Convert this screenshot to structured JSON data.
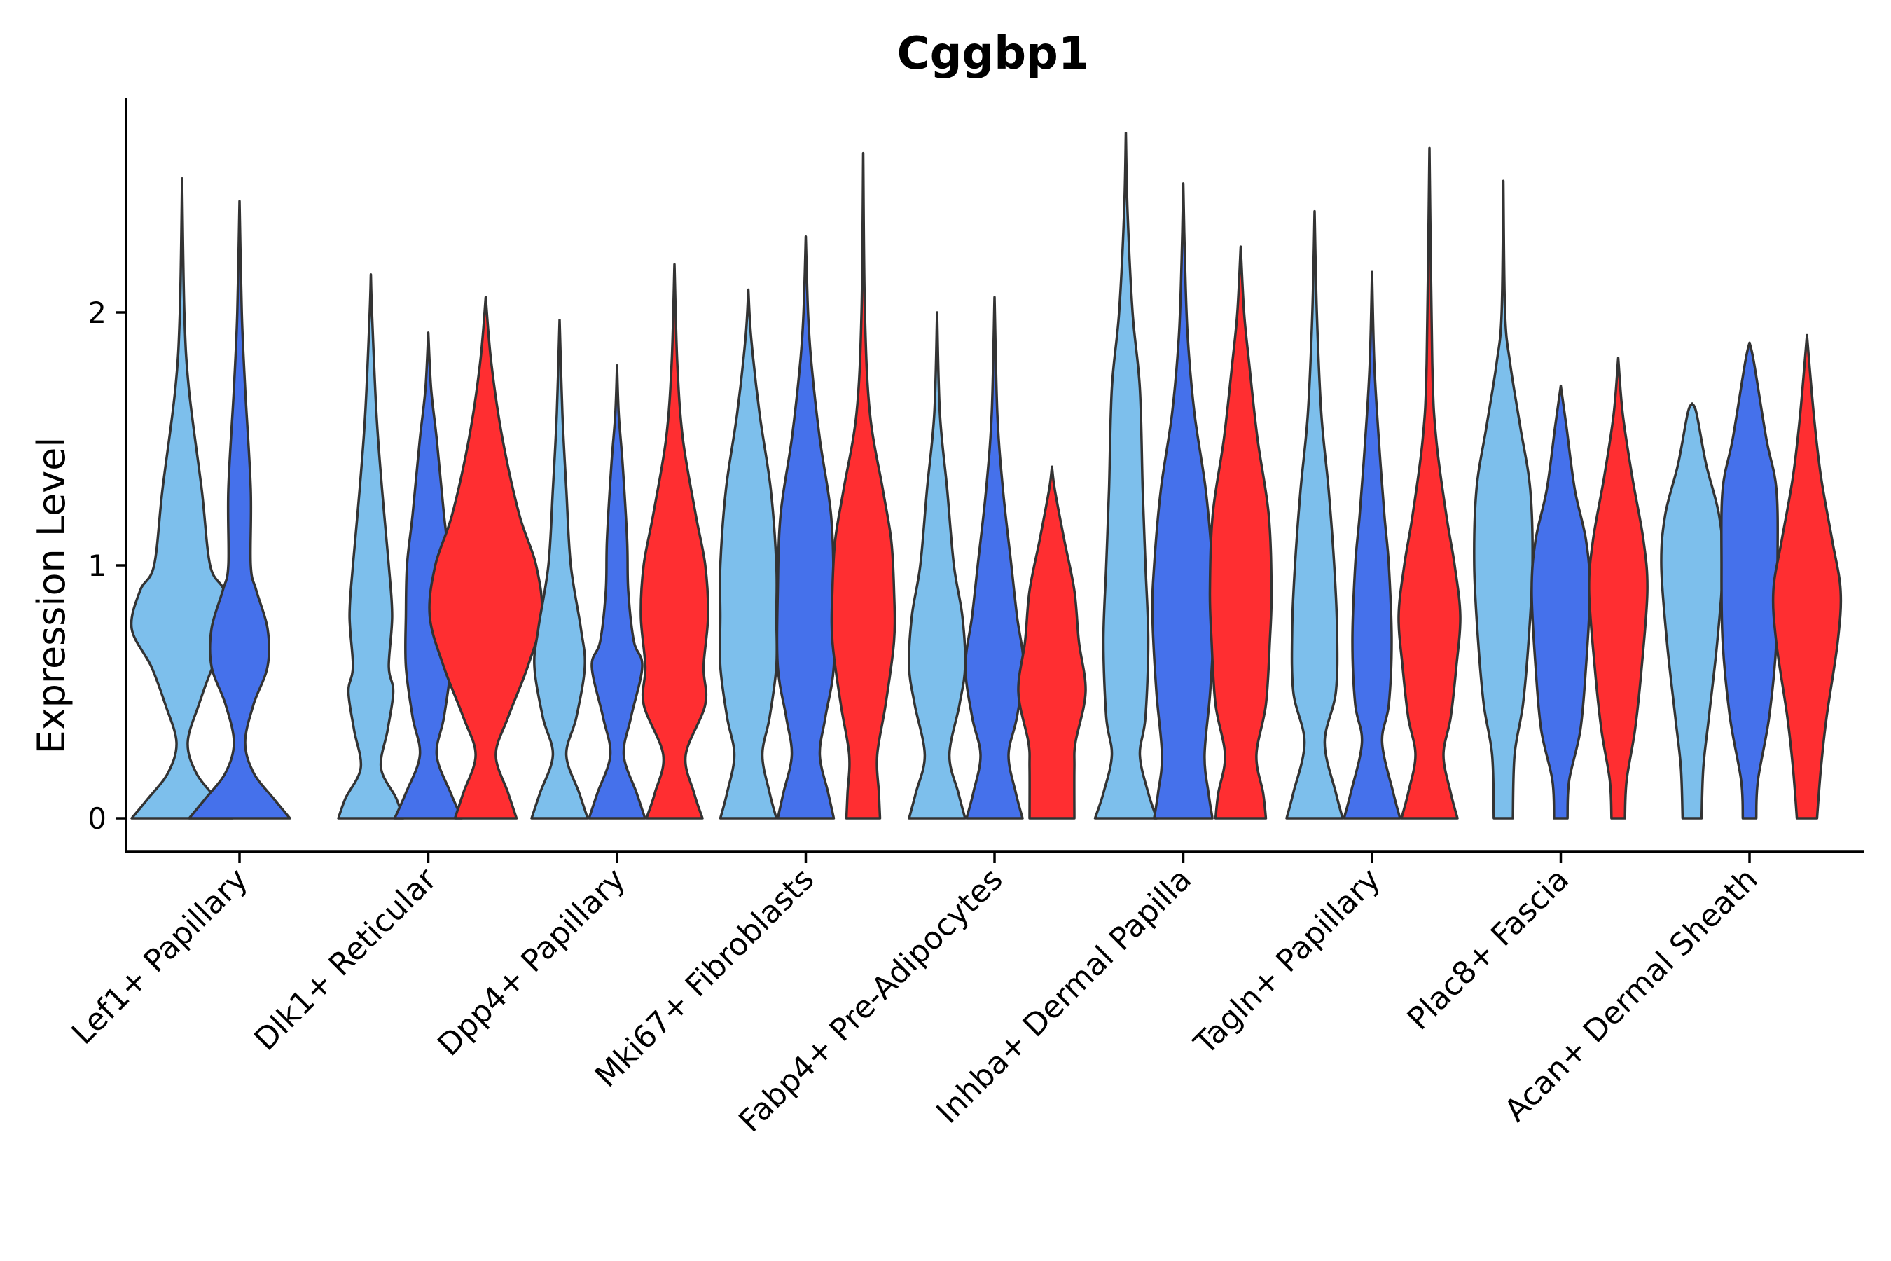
{
  "chart_data": {
    "type": "violin",
    "title": "Cggbp1",
    "xlabel": "",
    "ylabel": "Expression Level",
    "ylim": [
      -0.14,
      2.85
    ],
    "yticks": [
      0,
      1,
      2
    ],
    "categories": [
      "Lef1+ Papillary",
      "Dlk1+ Reticular",
      "Dpp4+ Papillary",
      "Mki67+ Fibroblasts",
      "Fabp4+ Pre-Adipocytes",
      "Inhba+ Dermal Papilla",
      "Tagln+ Papillary",
      "Plac8+ Fascia",
      "Acan+ Dermal Sheath"
    ],
    "series_colors": [
      "#7DBFEC",
      "#4571EB",
      "#FF2E31"
    ],
    "violins": [
      {
        "category": 0,
        "group": 0,
        "max": 2.53,
        "profile": [
          [
            0,
            0.9
          ],
          [
            0.08,
            0.6
          ],
          [
            0.18,
            0.25
          ],
          [
            0.3,
            0.1
          ],
          [
            0.45,
            0.3
          ],
          [
            0.6,
            0.55
          ],
          [
            0.75,
            0.9
          ],
          [
            0.9,
            0.75
          ],
          [
            1.0,
            0.5
          ],
          [
            1.3,
            0.35
          ],
          [
            1.7,
            0.12
          ],
          [
            2.0,
            0.04
          ],
          [
            2.53,
            0
          ]
        ]
      },
      {
        "category": 0,
        "group": 1,
        "max": 2.44,
        "profile": [
          [
            0,
            0.9
          ],
          [
            0.08,
            0.6
          ],
          [
            0.18,
            0.25
          ],
          [
            0.3,
            0.1
          ],
          [
            0.45,
            0.25
          ],
          [
            0.6,
            0.5
          ],
          [
            0.75,
            0.5
          ],
          [
            0.9,
            0.3
          ],
          [
            1.0,
            0.2
          ],
          [
            1.3,
            0.2
          ],
          [
            1.7,
            0.1
          ],
          [
            2.0,
            0.04
          ],
          [
            2.44,
            0
          ]
        ]
      },
      {
        "category": 1,
        "group": 0,
        "max": 2.15,
        "profile": [
          [
            0,
            0.58
          ],
          [
            0.08,
            0.45
          ],
          [
            0.2,
            0.18
          ],
          [
            0.35,
            0.3
          ],
          [
            0.5,
            0.4
          ],
          [
            0.6,
            0.32
          ],
          [
            0.8,
            0.38
          ],
          [
            1.0,
            0.32
          ],
          [
            1.3,
            0.2
          ],
          [
            1.6,
            0.1
          ],
          [
            2.0,
            0.02
          ],
          [
            2.15,
            0
          ]
        ]
      },
      {
        "category": 1,
        "group": 1,
        "max": 1.92,
        "profile": [
          [
            0,
            0.6
          ],
          [
            0.1,
            0.4
          ],
          [
            0.25,
            0.15
          ],
          [
            0.4,
            0.28
          ],
          [
            0.6,
            0.4
          ],
          [
            0.8,
            0.4
          ],
          [
            1.0,
            0.38
          ],
          [
            1.2,
            0.28
          ],
          [
            1.5,
            0.15
          ],
          [
            1.7,
            0.05
          ],
          [
            1.92,
            0
          ]
        ]
      },
      {
        "category": 1,
        "group": 2,
        "max": 2.06,
        "profile": [
          [
            0,
            0.55
          ],
          [
            0.1,
            0.4
          ],
          [
            0.25,
            0.18
          ],
          [
            0.4,
            0.4
          ],
          [
            0.6,
            0.75
          ],
          [
            0.8,
            1.0
          ],
          [
            1.0,
            0.9
          ],
          [
            1.2,
            0.6
          ],
          [
            1.5,
            0.3
          ],
          [
            1.8,
            0.1
          ],
          [
            2.06,
            0
          ]
        ]
      },
      {
        "category": 2,
        "group": 0,
        "max": 1.97,
        "profile": [
          [
            0,
            0.5
          ],
          [
            0.1,
            0.35
          ],
          [
            0.25,
            0.12
          ],
          [
            0.4,
            0.3
          ],
          [
            0.6,
            0.45
          ],
          [
            0.75,
            0.38
          ],
          [
            1.0,
            0.2
          ],
          [
            1.3,
            0.12
          ],
          [
            1.6,
            0.05
          ],
          [
            1.97,
            0
          ]
        ]
      },
      {
        "category": 2,
        "group": 1,
        "max": 1.79,
        "profile": [
          [
            0,
            0.5
          ],
          [
            0.1,
            0.35
          ],
          [
            0.25,
            0.12
          ],
          [
            0.4,
            0.25
          ],
          [
            0.6,
            0.45
          ],
          [
            0.7,
            0.3
          ],
          [
            0.9,
            0.2
          ],
          [
            1.1,
            0.18
          ],
          [
            1.4,
            0.1
          ],
          [
            1.6,
            0.03
          ],
          [
            1.79,
            0
          ]
        ]
      },
      {
        "category": 2,
        "group": 2,
        "max": 2.19,
        "profile": [
          [
            0,
            0.5
          ],
          [
            0.1,
            0.35
          ],
          [
            0.25,
            0.2
          ],
          [
            0.45,
            0.55
          ],
          [
            0.6,
            0.52
          ],
          [
            0.8,
            0.6
          ],
          [
            1.0,
            0.55
          ],
          [
            1.2,
            0.38
          ],
          [
            1.5,
            0.15
          ],
          [
            1.8,
            0.05
          ],
          [
            2.19,
            0
          ]
        ]
      },
      {
        "category": 3,
        "group": 0,
        "max": 2.09,
        "profile": [
          [
            0,
            0.5
          ],
          [
            0.1,
            0.38
          ],
          [
            0.25,
            0.25
          ],
          [
            0.4,
            0.38
          ],
          [
            0.6,
            0.5
          ],
          [
            0.8,
            0.5
          ],
          [
            1.0,
            0.5
          ],
          [
            1.3,
            0.4
          ],
          [
            1.6,
            0.2
          ],
          [
            1.9,
            0.05
          ],
          [
            2.09,
            0
          ]
        ]
      },
      {
        "category": 3,
        "group": 1,
        "max": 2.3,
        "profile": [
          [
            0,
            0.5
          ],
          [
            0.1,
            0.4
          ],
          [
            0.25,
            0.25
          ],
          [
            0.4,
            0.35
          ],
          [
            0.6,
            0.5
          ],
          [
            0.9,
            0.5
          ],
          [
            1.2,
            0.45
          ],
          [
            1.5,
            0.25
          ],
          [
            1.8,
            0.1
          ],
          [
            2.0,
            0.04
          ],
          [
            2.3,
            0
          ]
        ]
      },
      {
        "category": 3,
        "group": 2,
        "max": 2.63,
        "profile": [
          [
            0,
            0.3
          ],
          [
            0.1,
            0.28
          ],
          [
            0.25,
            0.25
          ],
          [
            0.45,
            0.4
          ],
          [
            0.7,
            0.55
          ],
          [
            0.9,
            0.55
          ],
          [
            1.1,
            0.5
          ],
          [
            1.3,
            0.35
          ],
          [
            1.6,
            0.12
          ],
          [
            2.0,
            0.03
          ],
          [
            2.63,
            0
          ]
        ]
      },
      {
        "category": 4,
        "group": 0,
        "max": 2.0,
        "profile": [
          [
            0,
            0.5
          ],
          [
            0.1,
            0.38
          ],
          [
            0.25,
            0.22
          ],
          [
            0.45,
            0.4
          ],
          [
            0.6,
            0.5
          ],
          [
            0.8,
            0.45
          ],
          [
            1.0,
            0.3
          ],
          [
            1.3,
            0.18
          ],
          [
            1.6,
            0.05
          ],
          [
            2.0,
            0
          ]
        ]
      },
      {
        "category": 4,
        "group": 1,
        "max": 2.06,
        "profile": [
          [
            0,
            0.5
          ],
          [
            0.1,
            0.38
          ],
          [
            0.25,
            0.25
          ],
          [
            0.4,
            0.4
          ],
          [
            0.6,
            0.52
          ],
          [
            0.8,
            0.4
          ],
          [
            1.0,
            0.3
          ],
          [
            1.3,
            0.15
          ],
          [
            1.6,
            0.05
          ],
          [
            2.06,
            0
          ]
        ]
      },
      {
        "category": 4,
        "group": 2,
        "max": 1.39,
        "profile": [
          [
            0,
            0.4
          ],
          [
            0.2,
            0.4
          ],
          [
            0.3,
            0.42
          ],
          [
            0.5,
            0.6
          ],
          [
            0.7,
            0.48
          ],
          [
            0.9,
            0.4
          ],
          [
            1.1,
            0.22
          ],
          [
            1.3,
            0.05
          ],
          [
            1.39,
            0
          ]
        ]
      },
      {
        "category": 5,
        "group": 0,
        "max": 2.71,
        "profile": [
          [
            0,
            0.55
          ],
          [
            0.1,
            0.4
          ],
          [
            0.25,
            0.25
          ],
          [
            0.4,
            0.35
          ],
          [
            0.7,
            0.4
          ],
          [
            1.0,
            0.35
          ],
          [
            1.3,
            0.3
          ],
          [
            1.7,
            0.25
          ],
          [
            2.0,
            0.12
          ],
          [
            2.4,
            0.03
          ],
          [
            2.71,
            0
          ]
        ]
      },
      {
        "category": 5,
        "group": 1,
        "max": 2.51,
        "profile": [
          [
            0,
            0.52
          ],
          [
            0.1,
            0.45
          ],
          [
            0.25,
            0.38
          ],
          [
            0.5,
            0.48
          ],
          [
            0.8,
            0.55
          ],
          [
            1.0,
            0.52
          ],
          [
            1.3,
            0.4
          ],
          [
            1.6,
            0.2
          ],
          [
            1.9,
            0.08
          ],
          [
            2.2,
            0.03
          ],
          [
            2.51,
            0
          ]
        ]
      },
      {
        "category": 5,
        "group": 2,
        "max": 2.26,
        "profile": [
          [
            0,
            0.45
          ],
          [
            0.1,
            0.4
          ],
          [
            0.25,
            0.28
          ],
          [
            0.45,
            0.45
          ],
          [
            0.7,
            0.52
          ],
          [
            0.9,
            0.55
          ],
          [
            1.2,
            0.5
          ],
          [
            1.5,
            0.3
          ],
          [
            1.8,
            0.15
          ],
          [
            2.0,
            0.06
          ],
          [
            2.26,
            0
          ]
        ]
      },
      {
        "category": 6,
        "group": 0,
        "max": 2.4,
        "profile": [
          [
            0,
            0.5
          ],
          [
            0.1,
            0.38
          ],
          [
            0.3,
            0.18
          ],
          [
            0.5,
            0.38
          ],
          [
            0.75,
            0.4
          ],
          [
            1.0,
            0.35
          ],
          [
            1.3,
            0.25
          ],
          [
            1.6,
            0.12
          ],
          [
            2.0,
            0.04
          ],
          [
            2.4,
            0
          ]
        ]
      },
      {
        "category": 6,
        "group": 1,
        "max": 2.16,
        "profile": [
          [
            0,
            0.5
          ],
          [
            0.1,
            0.38
          ],
          [
            0.3,
            0.18
          ],
          [
            0.45,
            0.3
          ],
          [
            0.7,
            0.35
          ],
          [
            1.0,
            0.3
          ],
          [
            1.2,
            0.22
          ],
          [
            1.5,
            0.12
          ],
          [
            1.8,
            0.04
          ],
          [
            2.16,
            0
          ]
        ]
      },
      {
        "category": 6,
        "group": 2,
        "max": 2.65,
        "profile": [
          [
            0,
            0.5
          ],
          [
            0.1,
            0.38
          ],
          [
            0.25,
            0.25
          ],
          [
            0.4,
            0.38
          ],
          [
            0.6,
            0.48
          ],
          [
            0.8,
            0.55
          ],
          [
            1.0,
            0.45
          ],
          [
            1.2,
            0.3
          ],
          [
            1.5,
            0.12
          ],
          [
            1.8,
            0.05
          ],
          [
            2.65,
            0
          ]
        ]
      },
      {
        "category": 7,
        "group": 0,
        "max": 2.52,
        "profile": [
          [
            0,
            0.17
          ],
          [
            0.25,
            0.2
          ],
          [
            0.45,
            0.35
          ],
          [
            0.7,
            0.45
          ],
          [
            1.0,
            0.52
          ],
          [
            1.3,
            0.48
          ],
          [
            1.55,
            0.3
          ],
          [
            1.8,
            0.12
          ],
          [
            2.0,
            0.03
          ],
          [
            2.52,
            0
          ]
        ]
      },
      {
        "category": 7,
        "group": 1,
        "max": 1.71,
        "profile": [
          [
            0,
            0.12
          ],
          [
            0.15,
            0.15
          ],
          [
            0.35,
            0.35
          ],
          [
            0.6,
            0.45
          ],
          [
            0.9,
            0.52
          ],
          [
            1.1,
            0.45
          ],
          [
            1.3,
            0.25
          ],
          [
            1.55,
            0.1
          ],
          [
            1.71,
            0
          ]
        ]
      },
      {
        "category": 7,
        "group": 2,
        "max": 1.82,
        "profile": [
          [
            0,
            0.12
          ],
          [
            0.15,
            0.15
          ],
          [
            0.35,
            0.3
          ],
          [
            0.6,
            0.42
          ],
          [
            0.9,
            0.52
          ],
          [
            1.1,
            0.45
          ],
          [
            1.35,
            0.25
          ],
          [
            1.6,
            0.08
          ],
          [
            1.82,
            0
          ]
        ]
      },
      {
        "category": 8,
        "group": 0,
        "max": 1.64,
        "profile": [
          [
            0,
            0.17
          ],
          [
            0.2,
            0.2
          ],
          [
            0.4,
            0.3
          ],
          [
            0.7,
            0.45
          ],
          [
            1.0,
            0.55
          ],
          [
            1.2,
            0.48
          ],
          [
            1.4,
            0.25
          ],
          [
            1.6,
            0.08
          ],
          [
            1.64,
            0
          ]
        ]
      },
      {
        "category": 8,
        "group": 1,
        "max": 1.88,
        "profile": [
          [
            0,
            0.12
          ],
          [
            0.15,
            0.15
          ],
          [
            0.4,
            0.35
          ],
          [
            0.7,
            0.48
          ],
          [
            1.0,
            0.5
          ],
          [
            1.3,
            0.48
          ],
          [
            1.5,
            0.3
          ],
          [
            1.8,
            0.08
          ],
          [
            1.88,
            0
          ]
        ]
      },
      {
        "category": 8,
        "group": 2,
        "max": 1.91,
        "profile": [
          [
            0,
            0.18
          ],
          [
            0.2,
            0.25
          ],
          [
            0.4,
            0.35
          ],
          [
            0.7,
            0.55
          ],
          [
            0.9,
            0.6
          ],
          [
            1.1,
            0.45
          ],
          [
            1.35,
            0.25
          ],
          [
            1.6,
            0.12
          ],
          [
            1.91,
            0
          ]
        ]
      }
    ]
  }
}
